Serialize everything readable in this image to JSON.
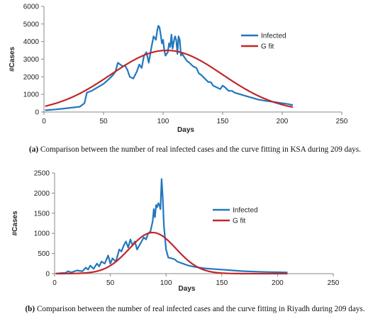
{
  "chart_data": [
    {
      "type": "line",
      "xlabel": "Days",
      "ylabel": "#Cases",
      "xlim": [
        0,
        250
      ],
      "ylim": [
        0,
        6000
      ],
      "xticks": [
        0,
        50,
        100,
        150,
        200,
        250
      ],
      "yticks": [
        0,
        1000,
        2000,
        3000,
        4000,
        5000,
        6000
      ],
      "grid": false,
      "legend_position": "top-right",
      "series": [
        {
          "name": "Infected",
          "color": "#2377bd",
          "x": [
            1,
            5,
            10,
            15,
            20,
            25,
            30,
            34,
            36,
            38,
            40,
            45,
            50,
            55,
            58,
            60,
            62,
            64,
            66,
            68,
            70,
            72,
            75,
            78,
            80,
            82,
            84,
            86,
            88,
            90,
            92,
            94,
            95,
            96,
            97,
            98,
            99,
            100,
            101,
            102,
            103,
            104,
            105,
            106,
            107,
            108,
            109,
            110,
            111,
            112,
            113,
            114,
            115,
            116,
            118,
            120,
            122,
            125,
            128,
            130,
            132,
            135,
            138,
            140,
            142,
            145,
            148,
            150,
            152,
            155,
            158,
            160,
            165,
            170,
            175,
            180,
            185,
            190,
            195,
            200,
            205,
            208,
            209
          ],
          "y": [
            100,
            120,
            150,
            180,
            220,
            260,
            300,
            500,
            1100,
            1150,
            1200,
            1400,
            1600,
            1900,
            2100,
            2300,
            2800,
            2700,
            2600,
            2650,
            2400,
            2000,
            1900,
            2300,
            2700,
            2500,
            3200,
            3400,
            2800,
            3600,
            4300,
            4100,
            4600,
            4900,
            4800,
            4400,
            3900,
            4100,
            3500,
            3200,
            3300,
            3400,
            3900,
            3700,
            4400,
            3600,
            4000,
            4300,
            4100,
            3300,
            4300,
            4100,
            3200,
            3300,
            3100,
            2900,
            2800,
            2600,
            2500,
            2200,
            2100,
            1900,
            1700,
            1700,
            1500,
            1400,
            1300,
            1500,
            1400,
            1200,
            1200,
            1100,
            1000,
            900,
            800,
            700,
            650,
            600,
            550,
            500,
            450,
            400,
            420
          ]
        },
        {
          "name": "G fit",
          "color": "#c0282a",
          "model": "gaussian",
          "amplitude": 3500,
          "center": 103,
          "width": 47
        }
      ]
    },
    {
      "type": "line",
      "xlabel": "Days",
      "ylabel": "#Cases",
      "xlim": [
        0,
        250
      ],
      "ylim": [
        0,
        2500
      ],
      "xticks": [
        0,
        50,
        100,
        150,
        200,
        250
      ],
      "yticks": [
        0,
        500,
        1000,
        1500,
        2000,
        2500
      ],
      "grid": false,
      "legend_position": "top-right",
      "series": [
        {
          "name": "Infected",
          "color": "#2377bd",
          "x": [
            1,
            5,
            10,
            12,
            15,
            20,
            25,
            28,
            30,
            32,
            35,
            38,
            40,
            42,
            45,
            48,
            50,
            52,
            55,
            58,
            60,
            62,
            64,
            66,
            68,
            70,
            72,
            74,
            76,
            78,
            80,
            82,
            84,
            86,
            88,
            89,
            90,
            91,
            92,
            93,
            94,
            95,
            96,
            97,
            98,
            100,
            102,
            105,
            108,
            110,
            115,
            120,
            125,
            130,
            135,
            140,
            145,
            150,
            160,
            170,
            180,
            190,
            200,
            209
          ],
          "y": [
            0,
            10,
            20,
            60,
            30,
            80,
            60,
            150,
            100,
            200,
            120,
            250,
            180,
            300,
            250,
            450,
            250,
            380,
            300,
            600,
            550,
            700,
            800,
            650,
            850,
            700,
            800,
            600,
            700,
            800,
            900,
            850,
            1000,
            1050,
            1300,
            1600,
            1400,
            1700,
            1650,
            1750,
            1700,
            1600,
            2350,
            1900,
            1200,
            600,
            400,
            380,
            350,
            300,
            250,
            200,
            170,
            150,
            130,
            120,
            110,
            100,
            80,
            60,
            50,
            40,
            35,
            30
          ]
        },
        {
          "name": "G fit",
          "color": "#c0282a",
          "model": "gaussian",
          "amplitude": 1020,
          "center": 88,
          "width": 21
        }
      ]
    }
  ],
  "captions": [
    {
      "label": "(a)",
      "text": " Comparison between the number of real infected cases and the curve fitting in KSA during 209 days."
    },
    {
      "label": "(b)",
      "text": " Comparison between the number of real infected cases and the curve fitting in Riyadh during 209 days."
    }
  ]
}
